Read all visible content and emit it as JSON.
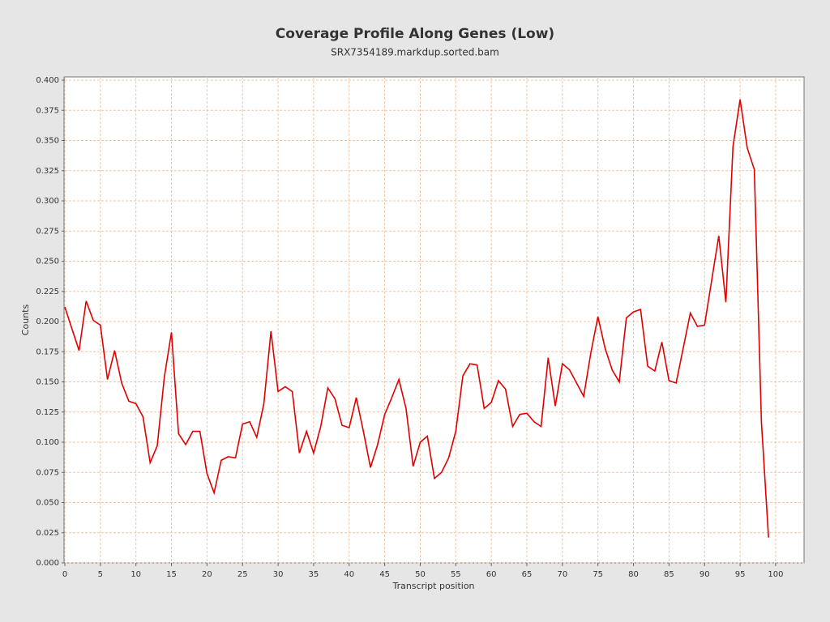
{
  "chart_data": {
    "type": "line",
    "title": "Coverage Profile Along Genes (Low)",
    "subtitle": "SRX7354189.markdup.sorted.bam",
    "xlabel": "Transcript position",
    "ylabel": "Counts",
    "color": "#e00000",
    "grid": true,
    "x": [
      0,
      1,
      2,
      3,
      4,
      5,
      6,
      7,
      8,
      9,
      10,
      11,
      12,
      13,
      14,
      15,
      16,
      17,
      18,
      19,
      20,
      21,
      22,
      23,
      24,
      25,
      26,
      27,
      28,
      29,
      30,
      31,
      32,
      33,
      34,
      35,
      36,
      37,
      38,
      39,
      40,
      41,
      42,
      43,
      44,
      45,
      46,
      47,
      48,
      49,
      50,
      51,
      52,
      53,
      54,
      55,
      56,
      57,
      58,
      59,
      60,
      61,
      62,
      63,
      64,
      65,
      66,
      67,
      68,
      69,
      70,
      71,
      72,
      73,
      74,
      75,
      76,
      77,
      78,
      79,
      80,
      81,
      82,
      83,
      84,
      85,
      86,
      87,
      88,
      89,
      90,
      91,
      92,
      93,
      94,
      95,
      96,
      97,
      98,
      99
    ],
    "values": [
      0.212,
      0.194,
      0.176,
      0.217,
      0.201,
      0.197,
      0.152,
      0.176,
      0.149,
      0.134,
      0.132,
      0.121,
      0.083,
      0.097,
      0.154,
      0.191,
      0.107,
      0.098,
      0.109,
      0.109,
      0.074,
      0.058,
      0.085,
      0.088,
      0.087,
      0.115,
      0.117,
      0.104,
      0.132,
      0.192,
      0.142,
      0.146,
      0.142,
      0.091,
      0.109,
      0.091,
      0.113,
      0.145,
      0.136,
      0.114,
      0.112,
      0.137,
      0.109,
      0.079,
      0.098,
      0.123,
      0.137,
      0.152,
      0.128,
      0.08,
      0.1,
      0.105,
      0.07,
      0.075,
      0.087,
      0.109,
      0.155,
      0.165,
      0.164,
      0.128,
      0.133,
      0.151,
      0.144,
      0.113,
      0.123,
      0.124,
      0.117,
      0.113,
      0.17,
      0.13,
      0.165,
      0.16,
      0.149,
      0.138,
      0.174,
      0.204,
      0.178,
      0.16,
      0.15,
      0.203,
      0.208,
      0.21,
      0.163,
      0.159,
      0.183,
      0.151,
      0.149,
      0.178,
      0.207,
      0.196,
      0.197,
      0.234,
      0.271,
      0.216,
      0.345,
      0.384,
      0.344,
      0.326,
      0.117,
      0.021
    ],
    "xlim": [
      0,
      104
    ],
    "xticks": [
      0,
      5,
      10,
      15,
      20,
      25,
      30,
      35,
      40,
      45,
      50,
      55,
      60,
      65,
      70,
      75,
      80,
      85,
      90,
      95,
      100
    ],
    "ylim": [
      0,
      0.4027
    ],
    "yticks": [
      {
        "value": 0,
        "label": "0.000"
      },
      {
        "value": 0.025,
        "label": "0.025"
      },
      {
        "value": 0.05,
        "label": "0.050"
      },
      {
        "value": 0.075,
        "label": "0.075"
      },
      {
        "value": 0.1,
        "label": "0.100"
      },
      {
        "value": 0.125,
        "label": "0.125"
      },
      {
        "value": 0.15,
        "label": "0.150"
      },
      {
        "value": 0.175,
        "label": "0.175"
      },
      {
        "value": 0.2,
        "label": "0.200"
      },
      {
        "value": 0.225,
        "label": "0.225"
      },
      {
        "value": 0.25,
        "label": "0.250"
      },
      {
        "value": 0.275,
        "label": "0.275"
      },
      {
        "value": 0.3,
        "label": "0.300"
      },
      {
        "value": 0.325,
        "label": "0.325"
      },
      {
        "value": 0.35,
        "label": "0.350"
      },
      {
        "value": 0.375,
        "label": "0.375"
      },
      {
        "value": 0.4,
        "label": "0.400"
      }
    ]
  }
}
